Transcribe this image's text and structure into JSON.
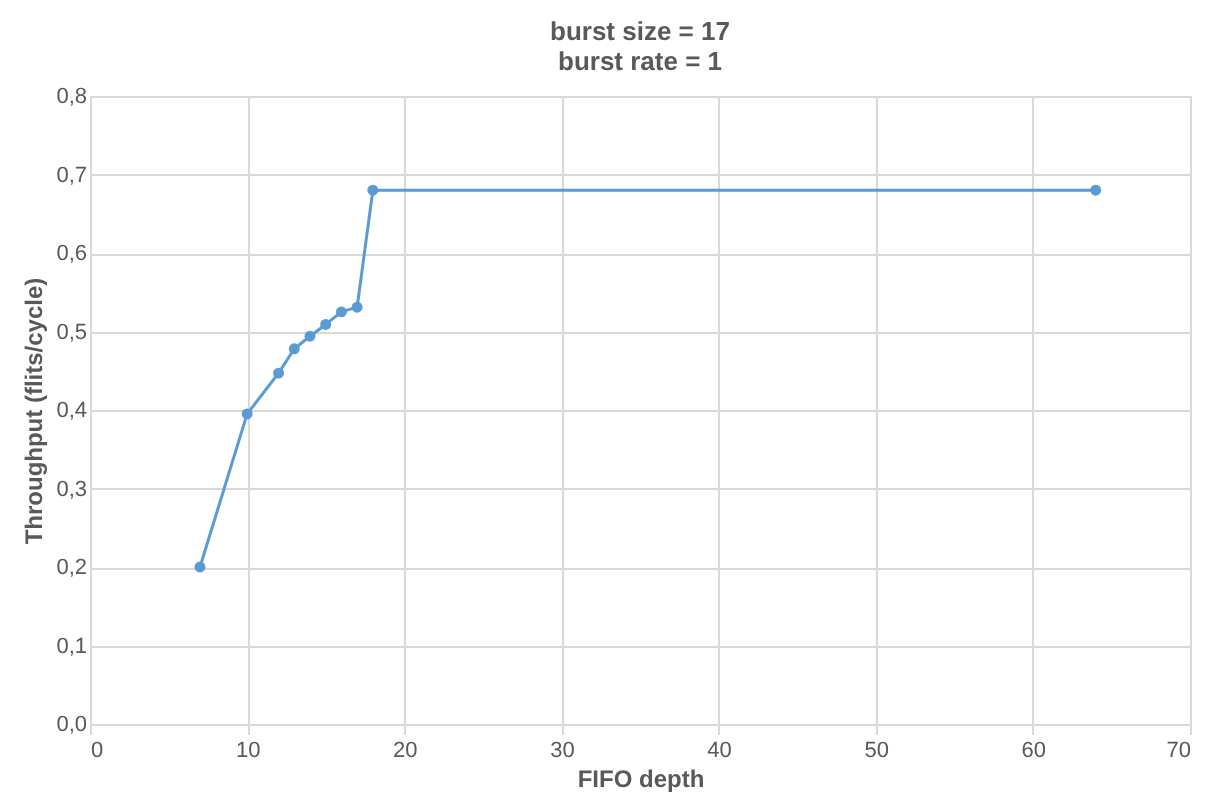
{
  "chart_data": {
    "type": "line",
    "title": [
      "burst size = 17",
      "burst rate = 1"
    ],
    "xlabel": "FIFO depth",
    "ylabel": "Throughput (flits/cycle)",
    "x": [
      7,
      10,
      12,
      13,
      14,
      15,
      16,
      17,
      18,
      64
    ],
    "series": [
      {
        "color": "#5b9bd5",
        "values": [
          0.2,
          0.395,
          0.447,
          0.478,
          0.494,
          0.509,
          0.525,
          0.531,
          0.68,
          0.68
        ]
      }
    ],
    "xlim": [
      0,
      70
    ],
    "xticks": [
      0,
      10,
      20,
      30,
      40,
      50,
      60,
      70
    ],
    "ylim": [
      0,
      0.8
    ],
    "yticks": [
      {
        "value": 0,
        "label": "0,0"
      },
      {
        "value": 0.1,
        "label": "0,1"
      },
      {
        "value": 0.2,
        "label": "0,2"
      },
      {
        "value": 0.3,
        "label": "0,3"
      },
      {
        "value": 0.4,
        "label": "0,4"
      },
      {
        "value": 0.5,
        "label": "0,5"
      },
      {
        "value": 0.6,
        "label": "0,6"
      },
      {
        "value": 0.7,
        "label": "0,7"
      },
      {
        "value": 0.8,
        "label": "0,8"
      }
    ],
    "grid": true,
    "marker": "circle",
    "line_style": "solid"
  }
}
